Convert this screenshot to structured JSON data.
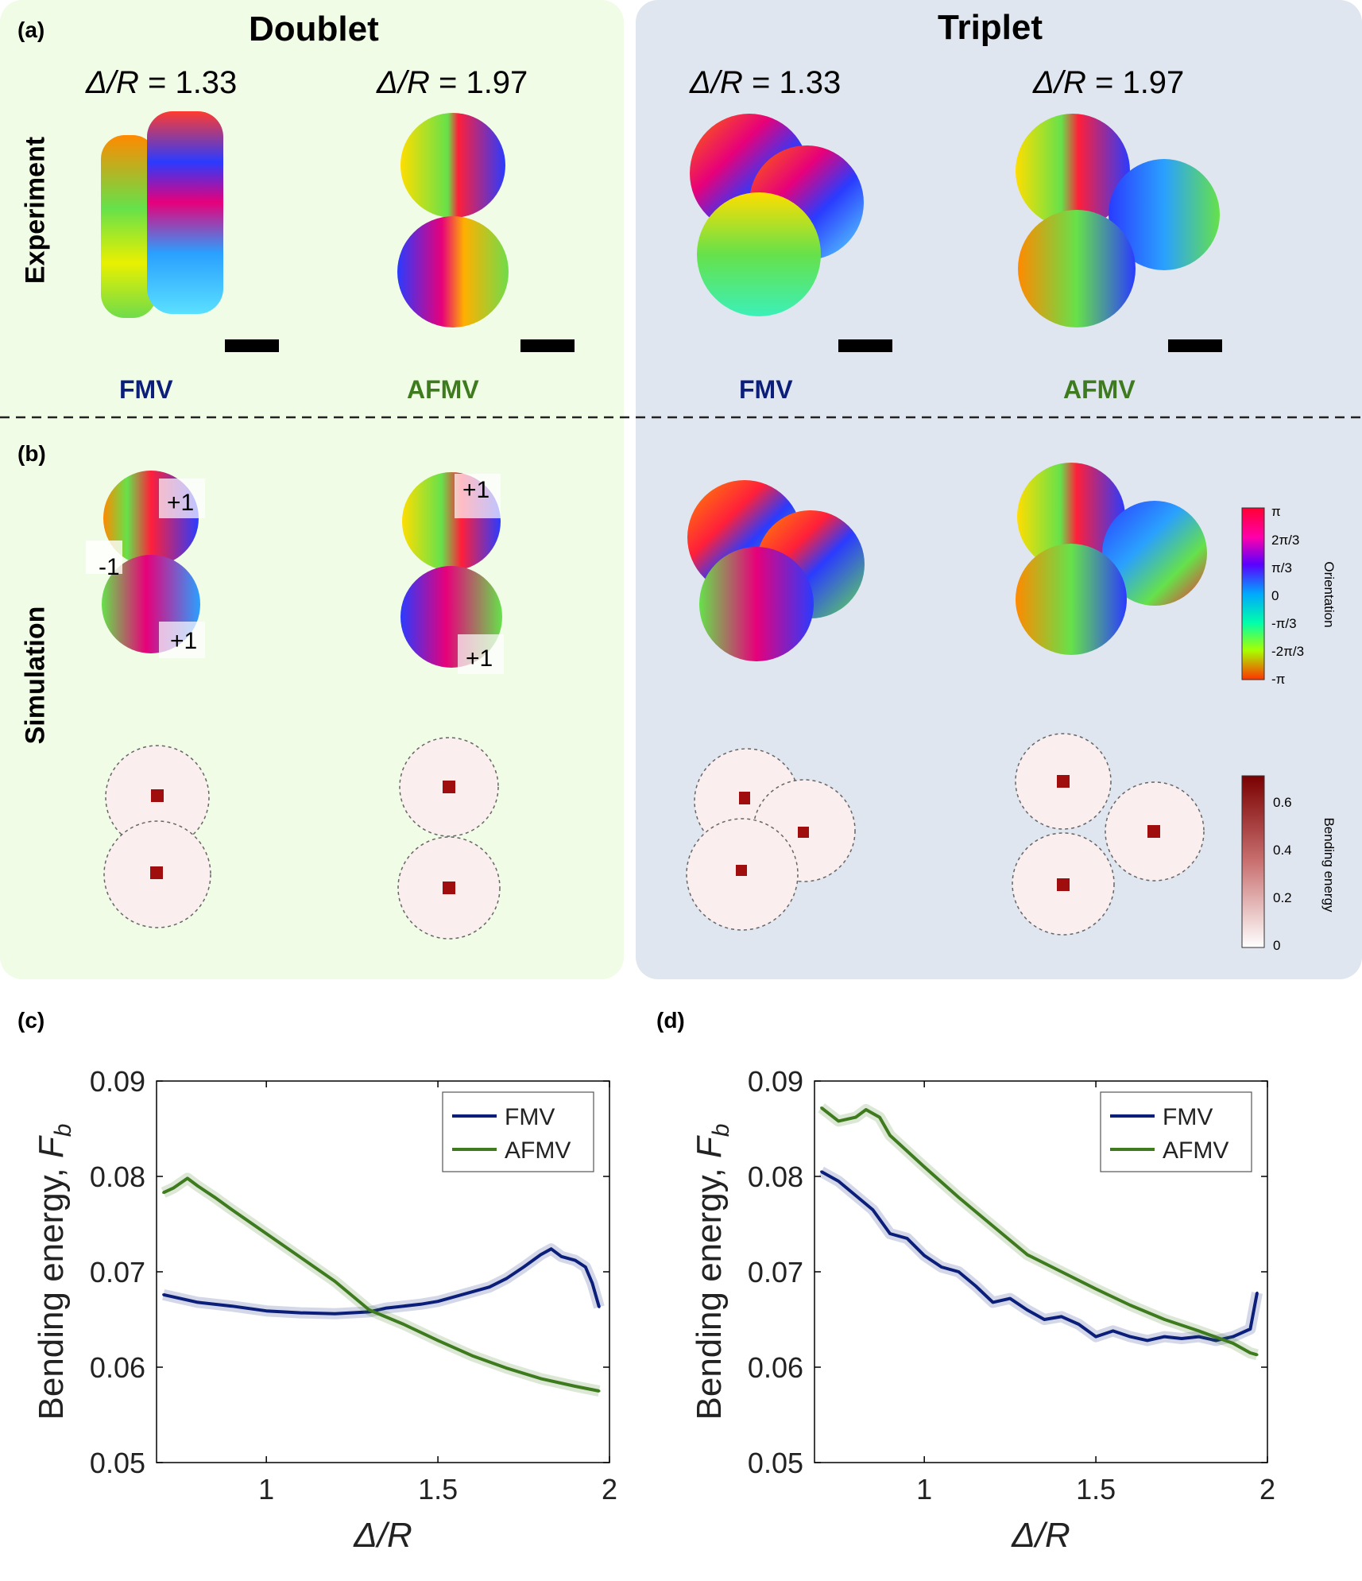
{
  "figure": {
    "panel_labels": [
      "(a)",
      "(b)",
      "(c)",
      "(d)"
    ],
    "doublet_title": "Doublet",
    "triplet_title": "Triplet",
    "ratio_label_prefix": "Δ/R",
    "ratios": [
      "= 1.33",
      "= 1.97",
      "= 1.33",
      "= 1.97"
    ],
    "row_experiment": "Experiment",
    "row_simulation": "Simulation",
    "modes": [
      "FMV",
      "AFMV",
      "FMV",
      "AFMV"
    ],
    "defect_charges": [
      "+1",
      "-1",
      "+1",
      "+1",
      "+1"
    ],
    "colors": {
      "doublet_bg": "#f1fce6",
      "triplet_bg": "#e0e6ef",
      "fmv": "#0b1f7a",
      "afmv": "#3e7a1e"
    },
    "orientation_colorbar": {
      "title": "Orientation",
      "ticks": [
        "π",
        "2π/3",
        "π/3",
        "0",
        "-π/3",
        "-2π/3",
        "-π"
      ]
    },
    "bending_colorbar": {
      "title": "Bending energy",
      "ticks": [
        "0.6",
        "0.4",
        "0.2",
        "0"
      ]
    }
  },
  "chart_data": [
    {
      "type": "line",
      "panel": "(c)",
      "xlabel": "Δ/R",
      "ylabel": "Bending energy, F_b",
      "ylabel_main": "Bending energy, ",
      "ylabel_sym": "F",
      "ylabel_sub": "b",
      "xlim": [
        0.68,
        2.0
      ],
      "ylim": [
        0.05,
        0.09
      ],
      "xticks": [
        1,
        1.5,
        2
      ],
      "xtick_labels": [
        "1",
        "1.5",
        "2"
      ],
      "yticks": [
        0.05,
        0.06,
        0.07,
        0.08,
        0.09
      ],
      "ytick_labels": [
        "0.05",
        "0.06",
        "0.07",
        "0.08",
        "0.09"
      ],
      "legend": "top-right",
      "series": [
        {
          "name": "FMV",
          "color": "#0b1f7a",
          "x": [
            0.7,
            0.8,
            0.9,
            1.0,
            1.1,
            1.2,
            1.3,
            1.35,
            1.4,
            1.45,
            1.5,
            1.55,
            1.6,
            1.65,
            1.7,
            1.75,
            1.8,
            1.83,
            1.86,
            1.9,
            1.93,
            1.95,
            1.97
          ],
          "y": [
            0.0676,
            0.0668,
            0.0664,
            0.0659,
            0.0657,
            0.0656,
            0.0658,
            0.0662,
            0.0664,
            0.0666,
            0.0669,
            0.0674,
            0.0679,
            0.0684,
            0.0693,
            0.0705,
            0.0718,
            0.0724,
            0.0716,
            0.0712,
            0.0705,
            0.0688,
            0.0663
          ]
        },
        {
          "name": "AFMV",
          "color": "#3e7a1e",
          "x": [
            0.7,
            0.73,
            0.77,
            0.8,
            0.85,
            0.9,
            1.0,
            1.1,
            1.2,
            1.3,
            1.4,
            1.5,
            1.6,
            1.7,
            1.8,
            1.9,
            1.97
          ],
          "y": [
            0.0783,
            0.0788,
            0.0798,
            0.079,
            0.0778,
            0.0765,
            0.074,
            0.0715,
            0.069,
            0.066,
            0.0645,
            0.0628,
            0.0612,
            0.0599,
            0.0588,
            0.058,
            0.0575
          ]
        }
      ]
    },
    {
      "type": "line",
      "panel": "(d)",
      "xlabel": "Δ/R",
      "ylabel": "Bending energy, F_b",
      "ylabel_main": "Bending energy, ",
      "ylabel_sym": "F",
      "ylabel_sub": "b",
      "xlim": [
        0.68,
        2.0
      ],
      "ylim": [
        0.05,
        0.09
      ],
      "xticks": [
        1,
        1.5,
        2
      ],
      "xtick_labels": [
        "1",
        "1.5",
        "2"
      ],
      "yticks": [
        0.05,
        0.06,
        0.07,
        0.08,
        0.09
      ],
      "ytick_labels": [
        "0.05",
        "0.06",
        "0.07",
        "0.08",
        "0.09"
      ],
      "legend": "top-right",
      "series": [
        {
          "name": "FMV",
          "color": "#0b1f7a",
          "x": [
            0.7,
            0.75,
            0.8,
            0.85,
            0.9,
            0.95,
            1.0,
            1.05,
            1.1,
            1.15,
            1.2,
            1.25,
            1.3,
            1.35,
            1.4,
            1.45,
            1.5,
            1.55,
            1.6,
            1.65,
            1.7,
            1.75,
            1.8,
            1.85,
            1.9,
            1.95,
            1.97
          ],
          "y": [
            0.0805,
            0.0795,
            0.078,
            0.0765,
            0.074,
            0.0735,
            0.0717,
            0.0705,
            0.07,
            0.0685,
            0.0668,
            0.0672,
            0.066,
            0.065,
            0.0653,
            0.0645,
            0.0632,
            0.0638,
            0.0632,
            0.0628,
            0.0632,
            0.063,
            0.0632,
            0.0628,
            0.0632,
            0.064,
            0.0678
          ]
        },
        {
          "name": "AFMV",
          "color": "#3e7a1e",
          "x": [
            0.7,
            0.75,
            0.8,
            0.83,
            0.87,
            0.9,
            1.0,
            1.1,
            1.2,
            1.3,
            1.4,
            1.5,
            1.6,
            1.7,
            1.8,
            1.9,
            1.95,
            1.97
          ],
          "y": [
            0.0872,
            0.0858,
            0.0862,
            0.087,
            0.0862,
            0.0843,
            0.081,
            0.0778,
            0.0748,
            0.0718,
            0.07,
            0.0682,
            0.0665,
            0.065,
            0.0638,
            0.0625,
            0.0615,
            0.0613
          ]
        }
      ]
    }
  ]
}
